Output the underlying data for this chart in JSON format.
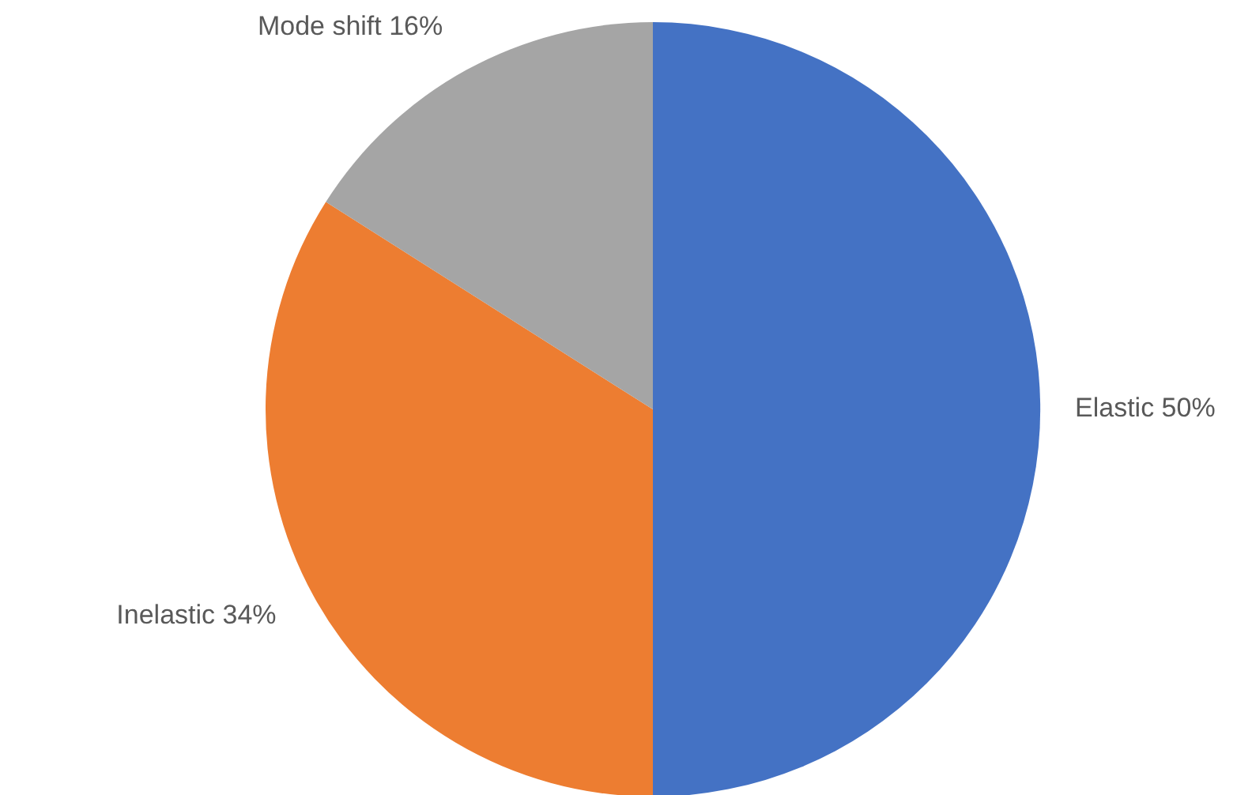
{
  "chart_data": {
    "type": "pie",
    "categories": [
      "Elastic",
      "Inelastic",
      "Mode shift"
    ],
    "values": [
      50,
      34,
      16
    ],
    "value_labels": [
      "50%",
      "34%",
      "16%"
    ],
    "colors": [
      "#4472c4",
      "#ed7d31",
      "#a5a5a5"
    ]
  }
}
